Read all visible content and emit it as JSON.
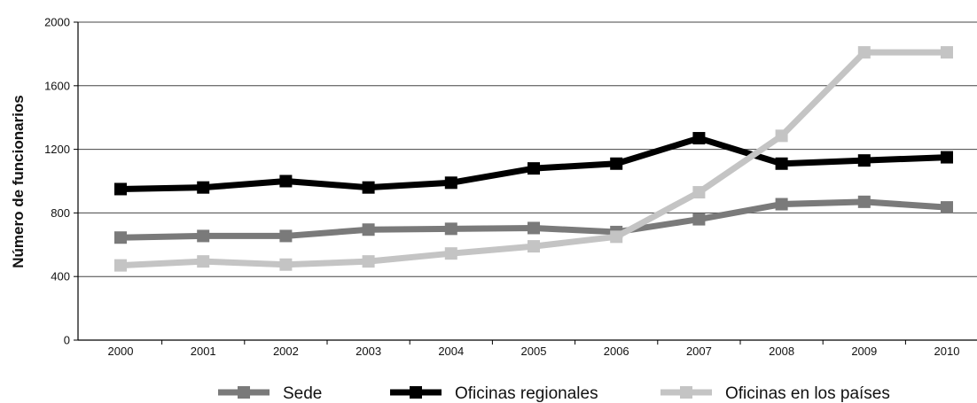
{
  "chart_data": {
    "type": "line",
    "title": "",
    "xlabel": "",
    "ylabel": "Número de funcionarios",
    "ylim": [
      0,
      2000
    ],
    "yticks": [
      0,
      400,
      800,
      1200,
      1600,
      2000
    ],
    "grid": "horizontal",
    "legend_position": "bottom",
    "x": [
      "2000",
      "2001",
      "2002",
      "2003",
      "2004",
      "2005",
      "2006",
      "2007",
      "2008",
      "2009",
      "2010"
    ],
    "series": [
      {
        "name": "Sede",
        "color": "#7a7a7a",
        "marker": "square",
        "values": [
          645,
          655,
          655,
          695,
          700,
          705,
          680,
          760,
          855,
          870,
          835
        ]
      },
      {
        "name": "Oficinas regionales",
        "color": "#000000",
        "marker": "square",
        "values": [
          950,
          960,
          1000,
          960,
          990,
          1080,
          1110,
          1270,
          1110,
          1130,
          1150
        ]
      },
      {
        "name": "Oficinas en los países",
        "color": "#c4c4c4",
        "marker": "square",
        "values": [
          470,
          495,
          475,
          495,
          545,
          590,
          650,
          930,
          1285,
          1810,
          1810
        ]
      }
    ]
  }
}
